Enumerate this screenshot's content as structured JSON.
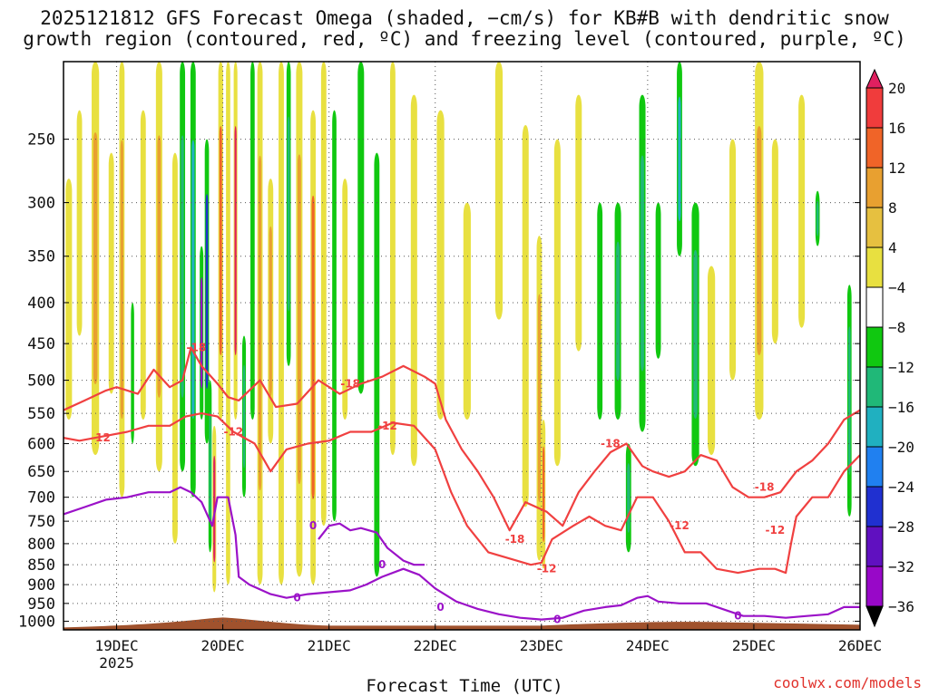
{
  "title": {
    "line1": "2025121812 GFS Forecast Omega (shaded, −cm/s) for KB#B with dendritic snow",
    "line2": "growth region (contoured, red, ºC) and freezing level (contoured, purple, ºC)"
  },
  "credit": "coolwx.com/models",
  "chart_data": {
    "type": "time-height cross section",
    "title": "2025121812 GFS Forecast Omega (shaded, −cm/s) for KB#B with dendritic snow growth region (contoured, red, ºC) and freezing level (contoured, purple, ºC)",
    "xlabel": "Forecast Time (UTC)",
    "ylabel": "",
    "x_ticks": [
      {
        "day": 19,
        "label": "19DEC",
        "sub": "2025"
      },
      {
        "day": 20,
        "label": "20DEC"
      },
      {
        "day": 21,
        "label": "21DEC"
      },
      {
        "day": 22,
        "label": "22DEC"
      },
      {
        "day": 23,
        "label": "23DEC"
      },
      {
        "day": 24,
        "label": "24DEC"
      },
      {
        "day": 25,
        "label": "25DEC"
      },
      {
        "day": 26,
        "label": "26DEC"
      }
    ],
    "xlim_days": [
      18.5,
      26.0
    ],
    "y_ticks": [
      250,
      300,
      350,
      400,
      450,
      500,
      550,
      600,
      650,
      700,
      750,
      800,
      850,
      900,
      950,
      1000
    ],
    "ylim_hpa": [
      1025,
      200
    ],
    "y_scale": "log",
    "grid": true,
    "colorbar": {
      "labels": [
        "20",
        "16",
        "12",
        "8",
        "4",
        "−4",
        "−8",
        "−12",
        "−16",
        "−20",
        "−24",
        "−28",
        "−32",
        "−36"
      ],
      "colors": [
        "#e02060",
        "#f03c3c",
        "#f06428",
        "#e8a030",
        "#e6c040",
        "#e8e040",
        "#ffffff",
        "#10c810",
        "#20b878",
        "#20b0c0",
        "#2080f0",
        "#2030d0",
        "#6010c0",
        "#9808c8",
        "#a0a0a0",
        "#000000"
      ]
    },
    "omega_features": [
      {
        "t": 18.55,
        "p_top": 280,
        "p_bot": 560,
        "w": 0.06,
        "v": 6
      },
      {
        "t": 18.65,
        "p_top": 230,
        "p_bot": 440,
        "w": 0.05,
        "v": 5
      },
      {
        "t": 18.8,
        "p_top": 200,
        "p_bot": 620,
        "w": 0.07,
        "v": 10
      },
      {
        "t": 18.95,
        "p_top": 260,
        "p_bot": 520,
        "w": 0.05,
        "v": 6
      },
      {
        "t": 19.05,
        "p_top": 200,
        "p_bot": 700,
        "w": 0.05,
        "v": 10
      },
      {
        "t": 19.15,
        "p_top": 400,
        "p_bot": 600,
        "w": 0.03,
        "v": -6
      },
      {
        "t": 19.25,
        "p_top": 230,
        "p_bot": 560,
        "w": 0.05,
        "v": 6
      },
      {
        "t": 19.4,
        "p_top": 200,
        "p_bot": 650,
        "w": 0.06,
        "v": 9
      },
      {
        "t": 19.55,
        "p_top": 260,
        "p_bot": 800,
        "w": 0.05,
        "v": 5
      },
      {
        "t": 19.62,
        "p_top": 200,
        "p_bot": 650,
        "w": 0.05,
        "v": -8
      },
      {
        "t": 19.72,
        "p_top": 200,
        "p_bot": 700,
        "w": 0.05,
        "v": -12
      },
      {
        "t": 19.8,
        "p_top": 340,
        "p_bot": 560,
        "w": 0.035,
        "v": -30
      },
      {
        "t": 19.85,
        "p_top": 250,
        "p_bot": 600,
        "w": 0.04,
        "v": -20
      },
      {
        "t": 19.88,
        "p_top": 500,
        "p_bot": 820,
        "w": 0.03,
        "v": -10
      },
      {
        "t": 19.92,
        "p_top": 570,
        "p_bot": 920,
        "w": 0.035,
        "v": 20
      },
      {
        "t": 19.98,
        "p_top": 200,
        "p_bot": 560,
        "w": 0.045,
        "v": 12
      },
      {
        "t": 20.05,
        "p_top": 200,
        "p_bot": 900,
        "w": 0.04,
        "v": 6
      },
      {
        "t": 20.12,
        "p_top": 200,
        "p_bot": 560,
        "w": 0.035,
        "v": 22
      },
      {
        "t": 20.2,
        "p_top": 440,
        "p_bot": 700,
        "w": 0.035,
        "v": -10
      },
      {
        "t": 20.28,
        "p_top": 200,
        "p_bot": 560,
        "w": 0.04,
        "v": -6
      },
      {
        "t": 20.35,
        "p_top": 200,
        "p_bot": 900,
        "w": 0.05,
        "v": 8
      },
      {
        "t": 20.45,
        "p_top": 280,
        "p_bot": 600,
        "w": 0.05,
        "v": 9
      },
      {
        "t": 20.55,
        "p_top": 200,
        "p_bot": 900,
        "w": 0.05,
        "v": 6
      },
      {
        "t": 20.62,
        "p_top": 200,
        "p_bot": 480,
        "w": 0.04,
        "v": -8
      },
      {
        "t": 20.72,
        "p_top": 200,
        "p_bot": 880,
        "w": 0.06,
        "v": 10
      },
      {
        "t": 20.85,
        "p_top": 230,
        "p_bot": 900,
        "w": 0.05,
        "v": 14
      },
      {
        "t": 20.95,
        "p_top": 200,
        "p_bot": 760,
        "w": 0.05,
        "v": 7
      },
      {
        "t": 21.05,
        "p_top": 230,
        "p_bot": 750,
        "w": 0.04,
        "v": -7
      },
      {
        "t": 21.15,
        "p_top": 280,
        "p_bot": 560,
        "w": 0.05,
        "v": 5
      },
      {
        "t": 21.3,
        "p_top": 200,
        "p_bot": 520,
        "w": 0.06,
        "v": -6
      },
      {
        "t": 21.45,
        "p_top": 260,
        "p_bot": 880,
        "w": 0.05,
        "v": -6
      },
      {
        "t": 21.6,
        "p_top": 200,
        "p_bot": 620,
        "w": 0.05,
        "v": 7
      },
      {
        "t": 21.8,
        "p_top": 220,
        "p_bot": 640,
        "w": 0.06,
        "v": 6
      },
      {
        "t": 22.05,
        "p_top": 230,
        "p_bot": 560,
        "w": 0.07,
        "v": 5
      },
      {
        "t": 22.3,
        "p_top": 300,
        "p_bot": 560,
        "w": 0.07,
        "v": 6
      },
      {
        "t": 22.6,
        "p_top": 200,
        "p_bot": 420,
        "w": 0.07,
        "v": 6
      },
      {
        "t": 22.85,
        "p_top": 240,
        "p_bot": 720,
        "w": 0.06,
        "v": 6
      },
      {
        "t": 22.98,
        "p_top": 330,
        "p_bot": 840,
        "w": 0.05,
        "v": 10
      },
      {
        "t": 23.02,
        "p_top": 560,
        "p_bot": 860,
        "w": 0.035,
        "v": 14
      },
      {
        "t": 23.15,
        "p_top": 250,
        "p_bot": 640,
        "w": 0.06,
        "v": 6
      },
      {
        "t": 23.35,
        "p_top": 220,
        "p_bot": 460,
        "w": 0.06,
        "v": 5
      },
      {
        "t": 23.55,
        "p_top": 300,
        "p_bot": 560,
        "w": 0.05,
        "v": -6
      },
      {
        "t": 23.72,
        "p_top": 300,
        "p_bot": 560,
        "w": 0.06,
        "v": -10
      },
      {
        "t": 23.82,
        "p_top": 600,
        "p_bot": 820,
        "w": 0.05,
        "v": -10
      },
      {
        "t": 23.95,
        "p_top": 220,
        "p_bot": 580,
        "w": 0.06,
        "v": -9
      },
      {
        "t": 24.1,
        "p_top": 300,
        "p_bot": 470,
        "w": 0.05,
        "v": -6
      },
      {
        "t": 24.3,
        "p_top": 200,
        "p_bot": 350,
        "w": 0.05,
        "v": -14
      },
      {
        "t": 24.45,
        "p_top": 300,
        "p_bot": 640,
        "w": 0.07,
        "v": -8
      },
      {
        "t": 24.6,
        "p_top": 360,
        "p_bot": 620,
        "w": 0.07,
        "v": 5
      },
      {
        "t": 24.8,
        "p_top": 250,
        "p_bot": 500,
        "w": 0.06,
        "v": 6
      },
      {
        "t": 25.05,
        "p_top": 200,
        "p_bot": 560,
        "w": 0.08,
        "v": 9
      },
      {
        "t": 25.2,
        "p_top": 250,
        "p_bot": 450,
        "w": 0.06,
        "v": 7
      },
      {
        "t": 25.45,
        "p_top": 220,
        "p_bot": 430,
        "w": 0.06,
        "v": 5
      },
      {
        "t": 25.6,
        "p_top": 290,
        "p_bot": 340,
        "w": 0.04,
        "v": -8
      },
      {
        "t": 25.9,
        "p_top": 380,
        "p_bot": 740,
        "w": 0.04,
        "v": -9
      }
    ],
    "contours": [
      {
        "name": "-18",
        "color": "#f04040",
        "points": [
          [
            18.5,
            545
          ],
          [
            18.7,
            530
          ],
          [
            18.9,
            515
          ],
          [
            19.0,
            510
          ],
          [
            19.2,
            520
          ],
          [
            19.35,
            485
          ],
          [
            19.5,
            510
          ],
          [
            19.62,
            500
          ],
          [
            19.7,
            455
          ],
          [
            19.8,
            480
          ],
          [
            19.95,
            505
          ],
          [
            20.05,
            525
          ],
          [
            20.15,
            530
          ],
          [
            20.35,
            500
          ],
          [
            20.5,
            540
          ],
          [
            20.7,
            535
          ],
          [
            20.9,
            500
          ],
          [
            21.1,
            520
          ],
          [
            21.3,
            505
          ],
          [
            21.5,
            495
          ],
          [
            21.7,
            480
          ],
          [
            21.9,
            495
          ],
          [
            22.0,
            505
          ],
          [
            22.1,
            560
          ],
          [
            22.25,
            610
          ],
          [
            22.4,
            650
          ],
          [
            22.55,
            700
          ],
          [
            22.7,
            770
          ],
          [
            22.85,
            710
          ],
          [
            23.05,
            730
          ],
          [
            23.2,
            760
          ],
          [
            23.35,
            690
          ],
          [
            23.5,
            650
          ],
          [
            23.65,
            615
          ],
          [
            23.8,
            600
          ],
          [
            23.95,
            640
          ],
          [
            24.05,
            650
          ],
          [
            24.2,
            660
          ],
          [
            24.35,
            650
          ],
          [
            24.5,
            620
          ],
          [
            24.65,
            630
          ],
          [
            24.8,
            680
          ],
          [
            24.95,
            700
          ],
          [
            25.1,
            700
          ],
          [
            25.25,
            690
          ],
          [
            25.4,
            650
          ],
          [
            25.55,
            630
          ],
          [
            25.7,
            600
          ],
          [
            25.85,
            560
          ],
          [
            26.0,
            545
          ]
        ],
        "label_pos": [
          [
            19.75,
            455
          ],
          [
            21.2,
            505
          ],
          [
            23.65,
            600
          ],
          [
            25.1,
            680
          ],
          [
            22.75,
            790
          ]
        ]
      },
      {
        "name": "-12",
        "color": "#f04040",
        "points": [
          [
            18.5,
            590
          ],
          [
            18.65,
            595
          ],
          [
            18.8,
            590
          ],
          [
            18.95,
            585
          ],
          [
            19.1,
            580
          ],
          [
            19.3,
            570
          ],
          [
            19.5,
            570
          ],
          [
            19.65,
            555
          ],
          [
            19.8,
            550
          ],
          [
            19.95,
            555
          ],
          [
            20.1,
            580
          ],
          [
            20.3,
            600
          ],
          [
            20.45,
            650
          ],
          [
            20.6,
            610
          ],
          [
            20.8,
            600
          ],
          [
            21.0,
            595
          ],
          [
            21.2,
            580
          ],
          [
            21.4,
            580
          ],
          [
            21.6,
            565
          ],
          [
            21.8,
            570
          ],
          [
            22.0,
            610
          ],
          [
            22.15,
            690
          ],
          [
            22.3,
            760
          ],
          [
            22.5,
            820
          ],
          [
            22.7,
            835
          ],
          [
            22.9,
            850
          ],
          [
            23.0,
            845
          ],
          [
            23.1,
            790
          ],
          [
            23.3,
            760
          ],
          [
            23.45,
            740
          ],
          [
            23.6,
            760
          ],
          [
            23.75,
            770
          ],
          [
            23.9,
            700
          ],
          [
            24.05,
            700
          ],
          [
            24.2,
            750
          ],
          [
            24.35,
            820
          ],
          [
            24.5,
            820
          ],
          [
            24.65,
            860
          ],
          [
            24.85,
            870
          ],
          [
            25.05,
            860
          ],
          [
            25.2,
            860
          ],
          [
            25.3,
            870
          ],
          [
            25.35,
            800
          ],
          [
            25.4,
            740
          ],
          [
            25.55,
            700
          ],
          [
            25.7,
            700
          ],
          [
            25.85,
            650
          ],
          [
            26.0,
            620
          ]
        ],
        "label_pos": [
          [
            18.85,
            590
          ],
          [
            20.1,
            580
          ],
          [
            21.55,
            570
          ],
          [
            23.05,
            860
          ],
          [
            24.3,
            760
          ],
          [
            25.2,
            770
          ]
        ]
      },
      {
        "name": "0",
        "color": "#9b12c8",
        "points": [
          [
            18.5,
            735
          ],
          [
            18.7,
            720
          ],
          [
            18.9,
            705
          ],
          [
            19.1,
            700
          ],
          [
            19.3,
            690
          ],
          [
            19.5,
            690
          ],
          [
            19.6,
            680
          ],
          [
            19.7,
            690
          ],
          [
            19.8,
            710
          ],
          [
            19.9,
            760
          ],
          [
            19.95,
            700
          ],
          [
            20.05,
            700
          ],
          [
            20.12,
            780
          ],
          [
            20.15,
            880
          ],
          [
            20.25,
            900
          ],
          [
            20.45,
            925
          ],
          [
            20.6,
            935
          ],
          [
            20.8,
            925
          ],
          [
            21.0,
            920
          ],
          [
            21.2,
            915
          ],
          [
            21.35,
            900
          ],
          [
            21.5,
            880
          ],
          [
            21.7,
            860
          ],
          [
            21.85,
            875
          ],
          [
            22.0,
            910
          ],
          [
            22.2,
            945
          ],
          [
            22.4,
            965
          ],
          [
            22.6,
            980
          ],
          [
            22.8,
            990
          ],
          [
            23.0,
            995
          ],
          [
            23.2,
            990
          ],
          [
            23.4,
            970
          ],
          [
            23.6,
            960
          ],
          [
            23.75,
            955
          ],
          [
            23.9,
            935
          ],
          [
            24.0,
            930
          ],
          [
            24.1,
            945
          ],
          [
            24.3,
            950
          ],
          [
            24.55,
            950
          ],
          [
            24.75,
            970
          ],
          [
            24.9,
            985
          ],
          [
            25.1,
            985
          ],
          [
            25.3,
            990
          ],
          [
            25.5,
            985
          ],
          [
            25.7,
            980
          ],
          [
            25.85,
            960
          ],
          [
            26.0,
            960
          ]
        ],
        "label_pos": [
          [
            20.7,
            935
          ],
          [
            22.05,
            960
          ],
          [
            23.15,
            995
          ],
          [
            24.85,
            985
          ]
        ]
      },
      {
        "name": "0",
        "color": "#9b12c8",
        "points": [
          [
            20.9,
            790
          ],
          [
            21.0,
            760
          ],
          [
            21.1,
            755
          ],
          [
            21.2,
            770
          ],
          [
            21.3,
            765
          ],
          [
            21.45,
            775
          ],
          [
            21.55,
            810
          ],
          [
            21.7,
            840
          ],
          [
            21.8,
            850
          ],
          [
            21.9,
            850
          ]
        ],
        "label_pos": [
          [
            20.85,
            760
          ],
          [
            21.5,
            850
          ]
        ]
      }
    ]
  },
  "colors": {
    "terrain": "#a0522d",
    "grid": "#555555",
    "dsgz_contour": "#f04040",
    "freezing_contour": "#9b12c8",
    "credit": "#e0302a"
  }
}
